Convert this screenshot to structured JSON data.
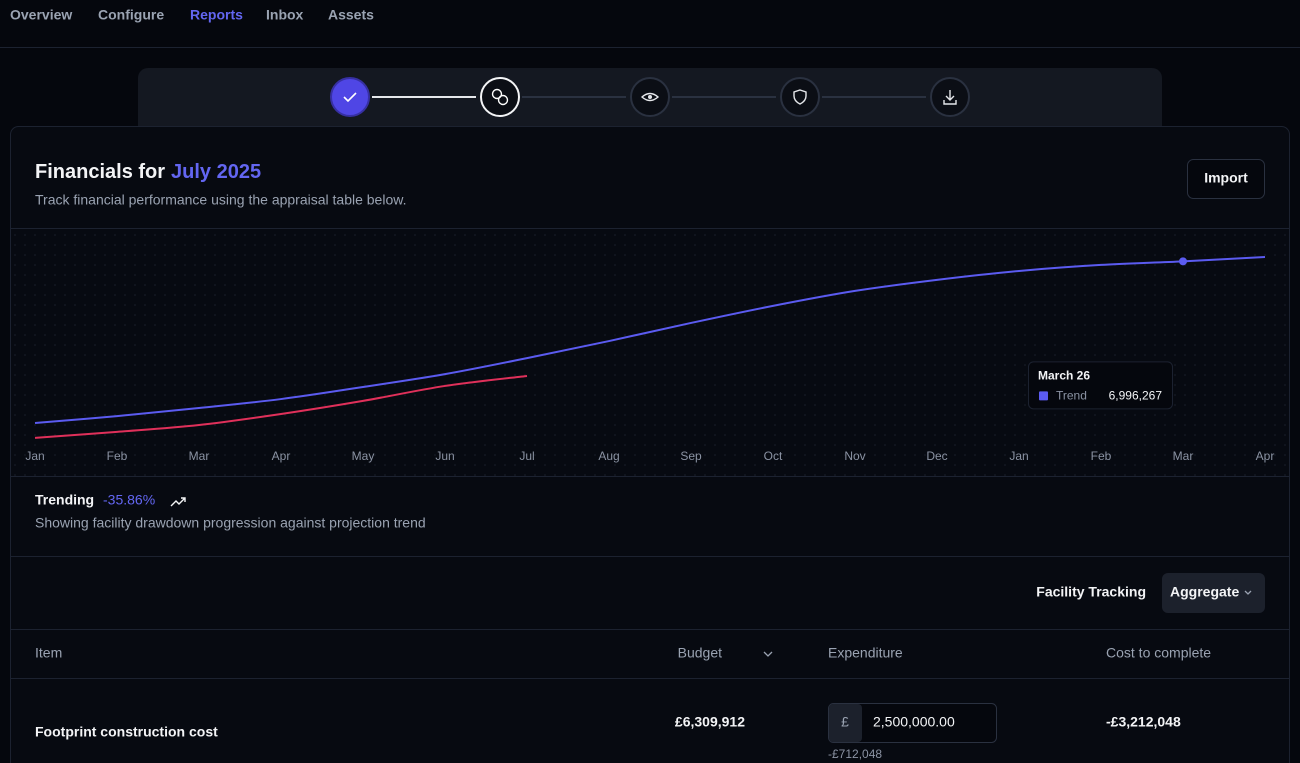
{
  "nav": {
    "tabs": [
      "Overview",
      "Configure",
      "Reports",
      "Inbox",
      "Assets"
    ],
    "active": "Reports"
  },
  "header": {
    "title": "Financials for",
    "period": "July 2025",
    "subtitle": "Track financial performance using the appraisal table below.",
    "button": "Import"
  },
  "chart_data": {
    "type": "line",
    "categories": [
      "Jan",
      "Feb",
      "Mar",
      "Apr",
      "May",
      "Jun",
      "Jul",
      "Aug",
      "Sep",
      "Oct",
      "Nov",
      "Dec",
      "Jan",
      "Feb",
      "Mar",
      "Apr"
    ],
    "series": [
      {
        "name": "Trend",
        "color": "#5b5bf0",
        "values": [
          840000,
          1100000,
          1410000,
          1750000,
          2210000,
          2700000,
          3310000,
          3960000,
          4650000,
          5300000,
          5870000,
          6290000,
          6630000,
          6860000,
          6996267,
          7160000
        ],
        "value_labels": [
          null,
          null,
          null,
          null,
          null,
          null,
          null,
          null,
          null,
          null,
          null,
          null,
          null,
          null,
          "6,996,267",
          null
        ]
      },
      {
        "color": "#e0305a",
        "values": [
          270000,
          500000,
          760000,
          1180000,
          1680000,
          2250000,
          2630000,
          null,
          null,
          null,
          null,
          null,
          null,
          null,
          null,
          null
        ]
      }
    ],
    "ylim": [
      0,
      8000000
    ],
    "tooltip": "March 26"
  },
  "trending": {
    "label": "Trending",
    "value": "-35.86%",
    "description": "Showing facility drawdown progression against projection trend"
  },
  "filter": {
    "label": "Facility Tracking",
    "select": "Aggregate"
  },
  "table": {
    "headers": [
      "Item",
      "Budget",
      "Expenditure",
      "Cost to complete"
    ],
    "rows": [
      {
        "item": "Footprint construction cost",
        "budget": "£6,309,912",
        "currency": "£",
        "expenditure": "2,500,000.00",
        "variance": "-£712,048",
        "cost_to_complete": "-£3,212,048"
      }
    ]
  }
}
